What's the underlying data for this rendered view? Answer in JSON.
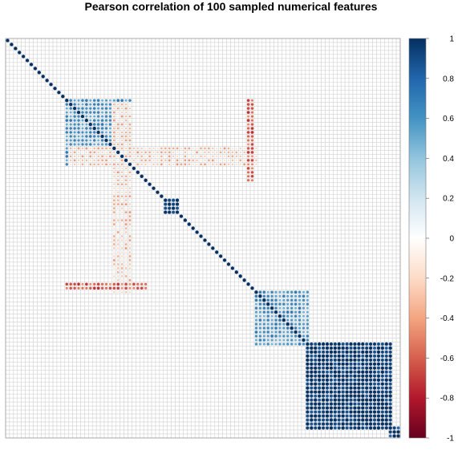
{
  "chart_data": {
    "type": "heatmap",
    "title": "Pearson correlation of 100 sampled numerical features",
    "n_features": 100,
    "value_range": [
      -1,
      1
    ],
    "matrix_type": "symmetric correlation matrix (corrplot, circle glyphs)",
    "grid": true,
    "colorbar": {
      "placement": "right",
      "ticks": [
        1,
        0.8,
        0.6,
        0.4,
        0.2,
        0,
        -0.2,
        -0.4,
        -0.6,
        -0.8,
        -1
      ],
      "tick_labels": [
        "1",
        "0.8",
        "0.6",
        "0.4",
        "0.2",
        "0",
        "-0.2",
        "-0.4",
        "-0.6",
        "-0.8",
        "-1"
      ],
      "colors": [
        "#053061",
        "#2166AC",
        "#4393C3",
        "#92C5DE",
        "#D1E5F0",
        "#FFFFFF",
        "#FDDBC7",
        "#F4A582",
        "#D6604D",
        "#B2182B",
        "#67001F"
      ]
    },
    "blocks": [
      {
        "features": [
          15,
          31
        ],
        "r": 0.6
      },
      {
        "features": [
          40,
          43
        ],
        "r": 0.9
      },
      {
        "features": [
          63,
          76
        ],
        "r": 0.6
      },
      {
        "features": [
          76,
          97
        ],
        "r": 0.97
      },
      {
        "features": [
          97,
          99
        ],
        "r": 0.9
      }
    ],
    "negative_bands": [
      {
        "features_a": [
          27,
          31
        ],
        "features_b": [
          16,
          63
        ],
        "r": -0.3
      },
      {
        "features_a": [
          61,
          62
        ],
        "features_b": [
          15,
          35
        ],
        "r": -0.6
      }
    ]
  }
}
